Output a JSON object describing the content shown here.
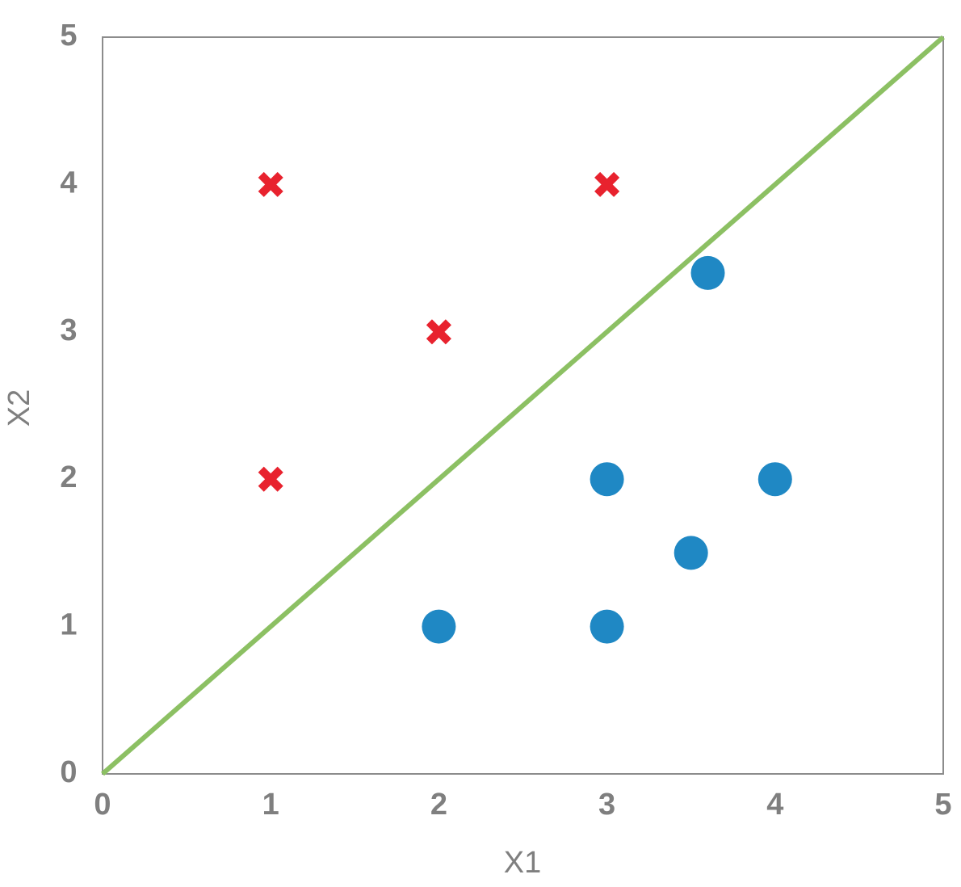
{
  "chart_data": {
    "type": "scatter",
    "xlabel": "X1",
    "ylabel": "X2",
    "xlim": [
      0,
      5
    ],
    "ylim": [
      0,
      5
    ],
    "xticks": [
      0,
      1,
      2,
      3,
      4,
      5
    ],
    "yticks": [
      0,
      1,
      2,
      3,
      4,
      5
    ],
    "grid": false,
    "series": [
      {
        "marker": "x",
        "color": "#e8222e",
        "x": [
          1,
          3,
          2,
          1
        ],
        "values": [
          4,
          4,
          3,
          2
        ]
      },
      {
        "marker": "circle",
        "color": "#1f88c4",
        "x": [
          3.6,
          3,
          4,
          3.5,
          2,
          3
        ],
        "values": [
          3.4,
          2,
          2,
          1.5,
          1,
          1
        ]
      },
      {
        "marker": "line",
        "color": "#8cc063",
        "x": [
          0,
          5
        ],
        "values": [
          0,
          5
        ]
      }
    ]
  }
}
